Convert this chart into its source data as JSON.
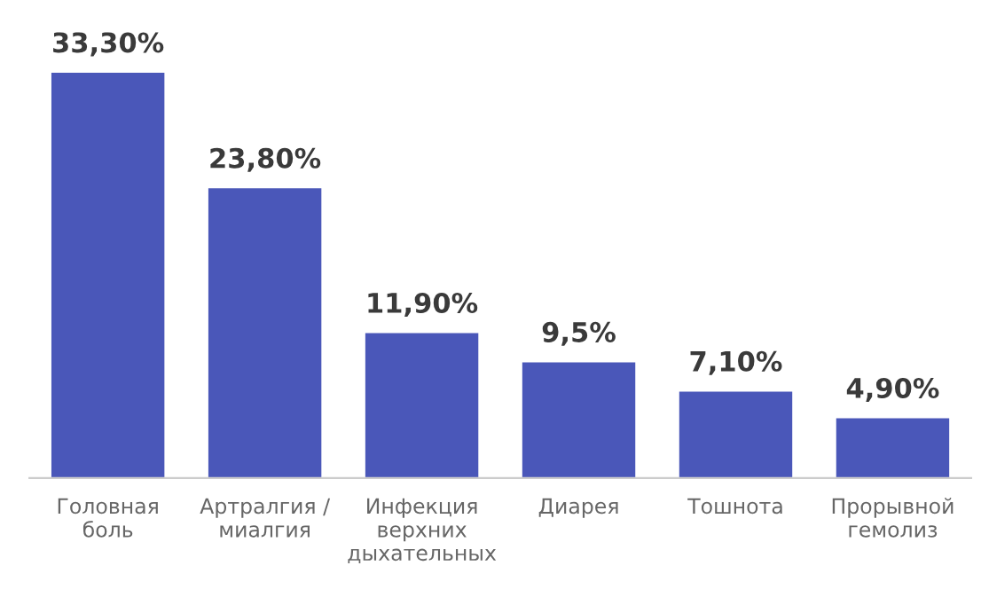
{
  "chart_data": {
    "type": "bar",
    "categories": [
      "Головная\nболь",
      "Артралгия /\nмиалгия",
      "Инфекция\nверхних\nдыхательных",
      "Диарея",
      "Тошнота",
      "Прорывной\nгемолиз"
    ],
    "values": [
      33.3,
      23.8,
      11.9,
      9.5,
      7.1,
      4.9
    ],
    "value_labels": [
      "33,30%",
      "23,80%",
      "11,90%",
      "9,5%",
      "7,10%",
      "4,90%"
    ],
    "color": "#4a57b9",
    "grid": false,
    "legend": false
  }
}
